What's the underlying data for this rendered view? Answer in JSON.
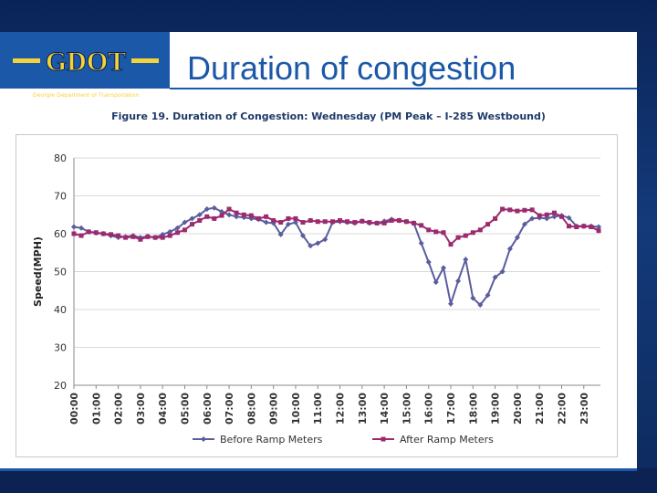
{
  "slide": {
    "title": "Duration of congestion",
    "logo_mark": "GDOT",
    "logo_text": "Georgie Department of Transportation"
  },
  "chart_data": {
    "type": "line",
    "title": "Figure 19. Duration of Congestion: Wednesday (PM Peak – I-285 Westbound)",
    "xlabel": "",
    "ylabel": "Speed(MPH)",
    "ylim": [
      20,
      80
    ],
    "yticks": [
      20,
      30,
      40,
      50,
      60,
      70,
      80
    ],
    "grid": "horizontal",
    "legend": "bottom",
    "x_ticks": [
      "00:00",
      "01:00",
      "02:00",
      "03:00",
      "04:00",
      "05:00",
      "06:00",
      "07:00",
      "08:00",
      "09:00",
      "10:00",
      "11:00",
      "12:00",
      "13:00",
      "14:00",
      "15:00",
      "16:00",
      "17:00",
      "18:00",
      "19:00",
      "20:00",
      "21:00",
      "22:00",
      "23:00"
    ],
    "x_unit": "hour",
    "xlim": [
      0,
      23.75
    ],
    "series": [
      {
        "name": "Before Ramp Meters",
        "color": "#5a5d9e",
        "marker": "diamond",
        "x": [
          0,
          0.33,
          0.67,
          1,
          1.33,
          1.67,
          2,
          2.33,
          2.67,
          3,
          3.33,
          3.67,
          4,
          4.33,
          4.67,
          5,
          5.33,
          5.67,
          6,
          6.33,
          6.67,
          7,
          7.33,
          7.67,
          8,
          8.33,
          8.67,
          9,
          9.33,
          9.67,
          10,
          10.33,
          10.67,
          11,
          11.33,
          11.67,
          12,
          12.33,
          12.67,
          13,
          13.33,
          13.67,
          14,
          14.33,
          14.67,
          15,
          15.33,
          15.67,
          16,
          16.33,
          16.67,
          17,
          17.33,
          17.67,
          18,
          18.33,
          18.67,
          19,
          19.33,
          19.67,
          20,
          20.33,
          20.67,
          21,
          21.33,
          21.67,
          22,
          22.33,
          22.67,
          23,
          23.33,
          23.67
        ],
        "y": [
          61.8,
          61.5,
          60.5,
          60.2,
          60.0,
          59.5,
          59.0,
          59.2,
          59.5,
          59.0,
          59.3,
          59.0,
          59.8,
          60.5,
          61.5,
          63.0,
          64.0,
          65.0,
          66.5,
          66.8,
          65.8,
          65.0,
          64.5,
          64.3,
          64.0,
          63.8,
          63.0,
          62.8,
          59.8,
          62.5,
          63.0,
          59.5,
          56.8,
          57.5,
          58.5,
          63.0,
          63.2,
          63.0,
          62.8,
          63.3,
          62.8,
          62.8,
          63.3,
          63.8,
          63.5,
          63.2,
          62.8,
          57.5,
          52.5,
          47.2,
          51.0,
          41.5,
          47.5,
          53.2,
          43.0,
          41.2,
          43.8,
          48.5,
          50.0,
          56.0,
          59.0,
          62.5,
          64.0,
          64.2,
          64.0,
          64.5,
          64.8,
          64.2,
          62.0,
          62.0,
          62.0,
          61.8
        ]
      },
      {
        "name": "After Ramp Meters",
        "color": "#9c2a6e",
        "marker": "square",
        "x": [
          0,
          0.33,
          0.67,
          1,
          1.33,
          1.67,
          2,
          2.33,
          2.67,
          3,
          3.33,
          3.67,
          4,
          4.33,
          4.67,
          5,
          5.33,
          5.67,
          6,
          6.33,
          6.67,
          7,
          7.33,
          7.67,
          8,
          8.33,
          8.67,
          9,
          9.33,
          9.67,
          10,
          10.33,
          10.67,
          11,
          11.33,
          11.67,
          12,
          12.33,
          12.67,
          13,
          13.33,
          13.67,
          14,
          14.33,
          14.67,
          15,
          15.33,
          15.67,
          16,
          16.33,
          16.67,
          17,
          17.33,
          17.67,
          18,
          18.33,
          18.67,
          19,
          19.33,
          19.67,
          20,
          20.33,
          20.67,
          21,
          21.33,
          21.67,
          22,
          22.33,
          22.67,
          23,
          23.33,
          23.67
        ],
        "y": [
          60.0,
          59.5,
          60.5,
          60.3,
          60.0,
          59.8,
          59.5,
          59.0,
          59.2,
          58.5,
          59.2,
          59.0,
          59.0,
          59.5,
          60.3,
          61.0,
          62.5,
          63.5,
          64.5,
          64.0,
          64.8,
          66.5,
          65.5,
          65.0,
          64.8,
          64.0,
          64.5,
          63.5,
          63.0,
          64.0,
          64.0,
          63.0,
          63.5,
          63.2,
          63.2,
          63.2,
          63.5,
          63.2,
          63.0,
          63.3,
          63.0,
          62.8,
          62.8,
          63.5,
          63.5,
          63.2,
          62.8,
          62.2,
          61.0,
          60.5,
          60.3,
          57.2,
          59.0,
          59.5,
          60.3,
          61.0,
          62.5,
          64.0,
          66.5,
          66.3,
          66.0,
          66.2,
          66.3,
          64.8,
          65.0,
          65.5,
          64.5,
          62.0,
          61.8,
          62.0,
          61.8,
          60.8
        ]
      }
    ]
  }
}
